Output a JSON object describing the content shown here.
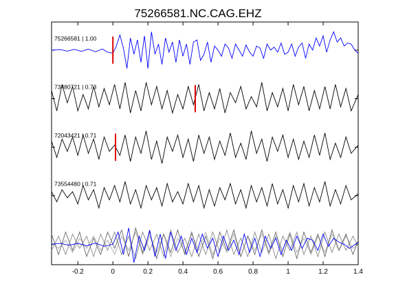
{
  "chart_data": {
    "type": "line",
    "title": "75266581.NC.CAG.EHZ",
    "xlim": [
      -0.35,
      1.4
    ],
    "x_ticks": [
      -0.2,
      0,
      0.2,
      0.4,
      0.6,
      0.8,
      1,
      1.2,
      1.4
    ],
    "x_tick_labels": [
      "-0.2",
      "0",
      "0.2",
      "0.4",
      "0.6",
      "0.8",
      "1",
      "1.2",
      "1.4"
    ],
    "grid": false,
    "traces": [
      {
        "label": "75266581 | 1.00",
        "color": "#0000ff",
        "pick_time": 0.0,
        "pick_color": "#dd0000",
        "x": [
          -0.35,
          -0.3,
          -0.26,
          -0.22,
          -0.18,
          -0.14,
          -0.1,
          -0.06,
          -0.03,
          0.0,
          0.02,
          0.04,
          0.06,
          0.08,
          0.1,
          0.12,
          0.14,
          0.16,
          0.18,
          0.2,
          0.22,
          0.24,
          0.26,
          0.28,
          0.3,
          0.32,
          0.34,
          0.36,
          0.38,
          0.4,
          0.42,
          0.44,
          0.46,
          0.48,
          0.5,
          0.52,
          0.54,
          0.56,
          0.58,
          0.6,
          0.62,
          0.64,
          0.66,
          0.68,
          0.7,
          0.72,
          0.74,
          0.76,
          0.78,
          0.8,
          0.82,
          0.84,
          0.86,
          0.88,
          0.9,
          0.92,
          0.94,
          0.96,
          0.98,
          1.0,
          1.02,
          1.04,
          1.06,
          1.08,
          1.1,
          1.12,
          1.14,
          1.16,
          1.18,
          1.2,
          1.22,
          1.24,
          1.26,
          1.28,
          1.3,
          1.32,
          1.34,
          1.36,
          1.38,
          1.4
        ],
        "y": [
          0,
          0.03,
          -0.05,
          0.04,
          -0.06,
          0.05,
          -0.08,
          0.06,
          -0.1,
          -0.15,
          0.2,
          0.75,
          0.1,
          -0.9,
          0.6,
          -0.2,
          0.5,
          -0.6,
          0.7,
          -0.9,
          0.9,
          -0.2,
          0.3,
          -0.7,
          0.6,
          -0.1,
          0.4,
          -0.6,
          0.5,
          -0.3,
          0.3,
          -0.7,
          0.4,
          0.5,
          -0.5,
          -0.2,
          0.4,
          -0.6,
          0.2,
          0.0,
          -0.3,
          0.3,
          0.1,
          -0.4,
          0.3,
          0.0,
          -0.3,
          0.25,
          -0.1,
          -0.3,
          0.2,
          0.1,
          -0.4,
          0.3,
          0.0,
          0.15,
          -0.1,
          0.35,
          -0.2,
          -0.1,
          0.3,
          -0.3,
          0.15,
          0.35,
          -0.4,
          0.3,
          0.0,
          0.6,
          0.2,
          0.7,
          -0.1,
          0.5,
          0.9,
          0.4,
          0.6,
          0.2,
          0.35,
          0.3,
          0.0,
          -0.15
        ]
      },
      {
        "label": "73480721 | 0.73",
        "color": "#000000",
        "pick_time": 0.47,
        "pick_color": "#dd0000",
        "x": [
          -0.35,
          -0.32,
          -0.29,
          -0.26,
          -0.23,
          -0.2,
          -0.17,
          -0.14,
          -0.11,
          -0.08,
          -0.05,
          -0.02,
          0.01,
          0.04,
          0.07,
          0.1,
          0.13,
          0.16,
          0.19,
          0.22,
          0.25,
          0.28,
          0.31,
          0.34,
          0.37,
          0.4,
          0.43,
          0.46,
          0.49,
          0.52,
          0.55,
          0.58,
          0.61,
          0.64,
          0.67,
          0.7,
          0.73,
          0.76,
          0.79,
          0.82,
          0.85,
          0.88,
          0.91,
          0.94,
          0.97,
          1.0,
          1.03,
          1.06,
          1.09,
          1.12,
          1.15,
          1.18,
          1.21,
          1.24,
          1.27,
          1.3,
          1.33,
          1.36,
          1.4
        ],
        "y": [
          0.4,
          -0.6,
          0.7,
          -0.2,
          0.6,
          -0.6,
          0.2,
          -0.5,
          0.6,
          -0.4,
          0.5,
          -0.3,
          0.7,
          -0.5,
          0.8,
          -0.7,
          0.4,
          -0.6,
          0.8,
          -0.3,
          0.6,
          -0.5,
          0.4,
          -0.7,
          0.2,
          -0.5,
          0.6,
          -0.3,
          0.7,
          -0.6,
          0.3,
          -0.5,
          0.5,
          -0.7,
          0.3,
          -0.2,
          0.6,
          -0.5,
          0.1,
          -0.4,
          0.8,
          -0.6,
          0.3,
          -0.4,
          0.5,
          -0.6,
          0.7,
          -0.3,
          0.6,
          -0.6,
          0.4,
          -0.5,
          0.6,
          -0.5,
          0.7,
          -0.4,
          0.5,
          -0.6,
          0.2
        ]
      },
      {
        "label": "72043421 | 0.71",
        "color": "#000000",
        "pick_time": 0.015,
        "pick_color": "#dd0000",
        "x": [
          -0.35,
          -0.32,
          -0.29,
          -0.26,
          -0.23,
          -0.2,
          -0.17,
          -0.14,
          -0.11,
          -0.08,
          -0.05,
          -0.02,
          0.01,
          0.04,
          0.07,
          0.1,
          0.13,
          0.16,
          0.19,
          0.22,
          0.25,
          0.28,
          0.31,
          0.34,
          0.37,
          0.4,
          0.43,
          0.46,
          0.49,
          0.52,
          0.55,
          0.58,
          0.61,
          0.64,
          0.67,
          0.7,
          0.73,
          0.76,
          0.79,
          0.82,
          0.85,
          0.88,
          0.91,
          0.94,
          0.97,
          1.0,
          1.03,
          1.06,
          1.09,
          1.12,
          1.15,
          1.18,
          1.21,
          1.24,
          1.27,
          1.3,
          1.33,
          1.36,
          1.4
        ],
        "y": [
          0.3,
          -0.5,
          0.4,
          -0.2,
          0.5,
          -0.4,
          0.6,
          -0.3,
          0.4,
          -0.6,
          0.5,
          -0.2,
          0.1,
          -0.4,
          0.6,
          -0.7,
          0.5,
          -0.3,
          0.8,
          -0.6,
          0.3,
          -0.8,
          0.5,
          -0.2,
          0.6,
          -0.5,
          0.4,
          -0.7,
          0.6,
          -0.3,
          0.5,
          -0.6,
          0.3,
          -0.4,
          0.7,
          -0.5,
          0.2,
          -0.6,
          0.8,
          -0.3,
          0.4,
          -0.7,
          0.5,
          -0.2,
          0.6,
          -0.5,
          0.4,
          -0.6,
          0.3,
          -0.5,
          0.6,
          -0.4,
          0.7,
          -0.6,
          0.2,
          -0.5,
          0.5,
          -0.3,
          0.1
        ]
      },
      {
        "label": "73554480 | 0.71",
        "color": "#000000",
        "pick_time": null,
        "pick_color": "#dd0000",
        "x": [
          -0.35,
          -0.32,
          -0.29,
          -0.26,
          -0.23,
          -0.2,
          -0.17,
          -0.14,
          -0.11,
          -0.08,
          -0.05,
          -0.02,
          0.01,
          0.04,
          0.07,
          0.1,
          0.13,
          0.16,
          0.19,
          0.22,
          0.25,
          0.28,
          0.31,
          0.34,
          0.37,
          0.4,
          0.43,
          0.46,
          0.49,
          0.52,
          0.55,
          0.58,
          0.61,
          0.64,
          0.67,
          0.7,
          0.73,
          0.76,
          0.79,
          0.82,
          0.85,
          0.88,
          0.91,
          0.94,
          0.97,
          1.0,
          1.03,
          1.06,
          1.09,
          1.12,
          1.15,
          1.18,
          1.21,
          1.24,
          1.27,
          1.3,
          1.33,
          1.36,
          1.4
        ],
        "y": [
          0.2,
          -0.3,
          0.3,
          -0.1,
          0.2,
          -0.4,
          0.5,
          -0.2,
          0.3,
          -0.6,
          0.4,
          -0.2,
          0.5,
          -0.3,
          0.7,
          -0.4,
          0.3,
          -0.6,
          0.5,
          -0.2,
          0.4,
          -0.5,
          0.6,
          -0.3,
          0.2,
          -0.4,
          0.6,
          -0.3,
          0.5,
          -0.6,
          0.3,
          -0.5,
          0.4,
          -0.2,
          0.6,
          -0.4,
          0.3,
          -0.6,
          0.5,
          -0.3,
          0.4,
          -0.5,
          0.6,
          -0.4,
          0.3,
          -0.6,
          0.5,
          -0.3,
          0.6,
          -0.5,
          0.4,
          -0.3,
          0.7,
          -0.5,
          0.3,
          -0.4,
          0.5,
          -0.2,
          0.1
        ]
      }
    ],
    "overlay": {
      "description_colors": [
        "#0000ff",
        "#666666",
        "#888888",
        "#aaaaaa"
      ],
      "series": [
        {
          "color": "#0000ff",
          "x": [
            -0.35,
            -0.3,
            -0.25,
            -0.2,
            -0.15,
            -0.1,
            -0.05,
            0.0,
            0.03,
            0.06,
            0.09,
            0.12,
            0.15,
            0.18,
            0.21,
            0.24,
            0.27,
            0.3,
            0.33,
            0.36,
            0.39,
            0.42,
            0.45,
            0.48,
            0.51,
            0.54,
            0.57,
            0.6,
            0.63,
            0.66,
            0.69,
            0.72,
            0.75,
            0.78,
            0.81,
            0.84,
            0.87,
            0.9,
            0.93,
            0.96,
            0.99,
            1.02,
            1.05,
            1.08,
            1.11,
            1.14,
            1.17,
            1.2,
            1.23,
            1.26,
            1.29,
            1.32,
            1.35,
            1.4
          ],
          "y": [
            0.0,
            0.05,
            -0.05,
            0.05,
            -0.08,
            0.06,
            -0.1,
            0.0,
            0.6,
            -0.5,
            0.8,
            -0.9,
            0.4,
            -0.3,
            0.7,
            -0.6,
            0.5,
            -0.7,
            0.6,
            -0.3,
            0.4,
            -0.5,
            0.3,
            -0.4,
            0.5,
            -0.2,
            0.3,
            -0.6,
            0.4,
            -0.3,
            0.2,
            -0.5,
            0.5,
            -0.4,
            0.3,
            -0.6,
            0.4,
            -0.2,
            0.3,
            -0.5,
            0.2,
            -0.3,
            0.4,
            -0.2,
            0.3,
            0.2,
            -0.3,
            0.5,
            -0.1,
            0.3,
            0.1,
            0.0,
            -0.2,
            0.1
          ]
        },
        {
          "color": "#666666",
          "x": [
            -0.35,
            -0.31,
            -0.27,
            -0.23,
            -0.19,
            -0.15,
            -0.11,
            -0.07,
            -0.03,
            0.01,
            0.05,
            0.09,
            0.13,
            0.17,
            0.21,
            0.25,
            0.29,
            0.33,
            0.37,
            0.41,
            0.45,
            0.49,
            0.53,
            0.57,
            0.61,
            0.65,
            0.69,
            0.73,
            0.77,
            0.81,
            0.85,
            0.89,
            0.93,
            0.97,
            1.01,
            1.05,
            1.09,
            1.13,
            1.17,
            1.21,
            1.25,
            1.29,
            1.33,
            1.37,
            1.4
          ],
          "y": [
            0.5,
            -0.5,
            0.6,
            -0.3,
            0.6,
            -0.6,
            0.3,
            -0.5,
            0.6,
            -0.2,
            0.7,
            -0.6,
            0.8,
            -0.4,
            0.6,
            -0.7,
            0.5,
            -0.4,
            0.7,
            -0.5,
            0.6,
            -0.6,
            0.4,
            -0.7,
            0.6,
            -0.3,
            0.7,
            -0.6,
            0.4,
            -0.5,
            0.7,
            -0.4,
            0.6,
            -0.6,
            0.5,
            -0.7,
            0.6,
            -0.4,
            0.5,
            -0.6,
            0.7,
            -0.3,
            0.5,
            -0.5,
            0.2
          ]
        },
        {
          "color": "#888888",
          "x": [
            -0.35,
            -0.31,
            -0.27,
            -0.23,
            -0.19,
            -0.15,
            -0.11,
            -0.07,
            -0.03,
            0.01,
            0.05,
            0.09,
            0.13,
            0.17,
            0.21,
            0.25,
            0.29,
            0.33,
            0.37,
            0.41,
            0.45,
            0.49,
            0.53,
            0.57,
            0.61,
            0.65,
            0.69,
            0.73,
            0.77,
            0.81,
            0.85,
            0.89,
            0.93,
            0.97,
            1.01,
            1.05,
            1.09,
            1.13,
            1.17,
            1.21,
            1.25,
            1.29,
            1.33,
            1.37,
            1.4
          ],
          "y": [
            -0.3,
            0.4,
            -0.5,
            0.5,
            -0.2,
            0.4,
            -0.6,
            0.5,
            -0.3,
            0.6,
            -0.5,
            0.4,
            -0.7,
            0.6,
            -0.3,
            0.5,
            -0.6,
            0.7,
            -0.4,
            0.3,
            -0.6,
            0.5,
            -0.5,
            0.6,
            -0.4,
            0.7,
            -0.5,
            0.3,
            -0.6,
            0.6,
            -0.4,
            0.5,
            -0.7,
            0.4,
            -0.3,
            0.6,
            -0.5,
            0.4,
            -0.6,
            0.6,
            -0.4,
            0.5,
            -0.3,
            0.4,
            -0.1
          ]
        },
        {
          "color": "#aaaaaa",
          "x": [
            -0.35,
            -0.31,
            -0.27,
            -0.23,
            -0.19,
            -0.15,
            -0.11,
            -0.07,
            -0.03,
            0.01,
            0.05,
            0.09,
            0.13,
            0.17,
            0.21,
            0.25,
            0.29,
            0.33,
            0.37,
            0.41,
            0.45,
            0.49,
            0.53,
            0.57,
            0.61,
            0.65,
            0.69,
            0.73,
            0.77,
            0.81,
            0.85,
            0.89,
            0.93,
            0.97,
            1.01,
            1.05,
            1.09,
            1.13,
            1.17,
            1.21,
            1.25,
            1.29,
            1.33,
            1.37,
            1.4
          ],
          "y": [
            0.1,
            -0.2,
            0.2,
            -0.4,
            0.3,
            -0.2,
            0.4,
            -0.3,
            0.2,
            -0.5,
            0.4,
            -0.3,
            0.6,
            -0.5,
            0.4,
            -0.4,
            0.5,
            -0.6,
            0.3,
            -0.4,
            0.5,
            -0.3,
            0.6,
            -0.5,
            0.3,
            -0.4,
            0.5,
            -0.6,
            0.4,
            -0.3,
            0.5,
            -0.5,
            0.4,
            -0.3,
            0.6,
            -0.4,
            0.3,
            -0.5,
            0.4,
            -0.4,
            0.5,
            -0.3,
            0.4,
            -0.2,
            0.0
          ]
        }
      ]
    }
  }
}
